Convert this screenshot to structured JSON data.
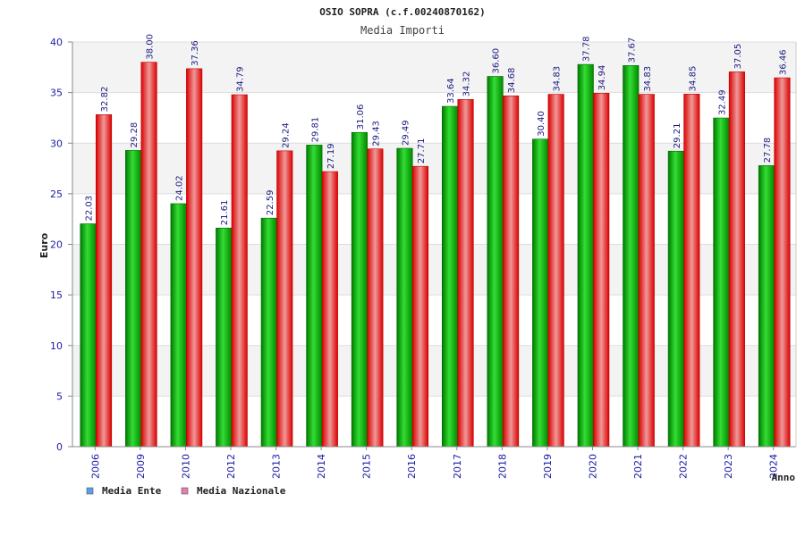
{
  "chart_data": {
    "type": "bar",
    "title": "OSIO SOPRA (c.f.00240870162)",
    "subtitle": "Media Importi",
    "xlabel": "Anno",
    "ylabel": "Euro",
    "ylim": [
      0,
      40
    ],
    "yticks": [
      "0",
      "5",
      "10",
      "15",
      "20",
      "25",
      "30",
      "35",
      "40"
    ],
    "categories": [
      "2006",
      "2009",
      "2010",
      "2012",
      "2013",
      "2014",
      "2015",
      "2016",
      "2017",
      "2018",
      "2019",
      "2020",
      "2021",
      "2022",
      "2023",
      "2024"
    ],
    "series": [
      {
        "name": "Media Ente",
        "values": [
          22.03,
          29.28,
          24.02,
          21.61,
          22.59,
          29.81,
          31.06,
          29.49,
          33.64,
          36.6,
          30.4,
          37.78,
          37.67,
          29.21,
          32.49,
          27.78
        ],
        "labels": [
          "22.03",
          "29.28",
          "24.02",
          "21.61",
          "22.59",
          "29.81",
          "31.06",
          "29.49",
          "33.64",
          "36.60",
          "30.40",
          "37.78",
          "37.67",
          "29.21",
          "32.49",
          "27.78"
        ]
      },
      {
        "name": "Media Nazionale",
        "values": [
          32.82,
          38.0,
          37.36,
          34.79,
          29.24,
          27.19,
          29.43,
          27.71,
          34.32,
          34.68,
          34.83,
          34.94,
          34.83,
          34.85,
          37.05,
          36.46
        ],
        "labels": [
          "32.82",
          "38.00",
          "37.36",
          "34.79",
          "29.24",
          "27.19",
          "29.43",
          "27.71",
          "34.32",
          "34.68",
          "34.83",
          "34.94",
          "34.83",
          "34.85",
          "37.05",
          "36.46"
        ]
      }
    ],
    "legend_position": "bottom-left",
    "legend_colors": [
      "#5aa0e6",
      "#e080b0"
    ],
    "grid": true
  }
}
